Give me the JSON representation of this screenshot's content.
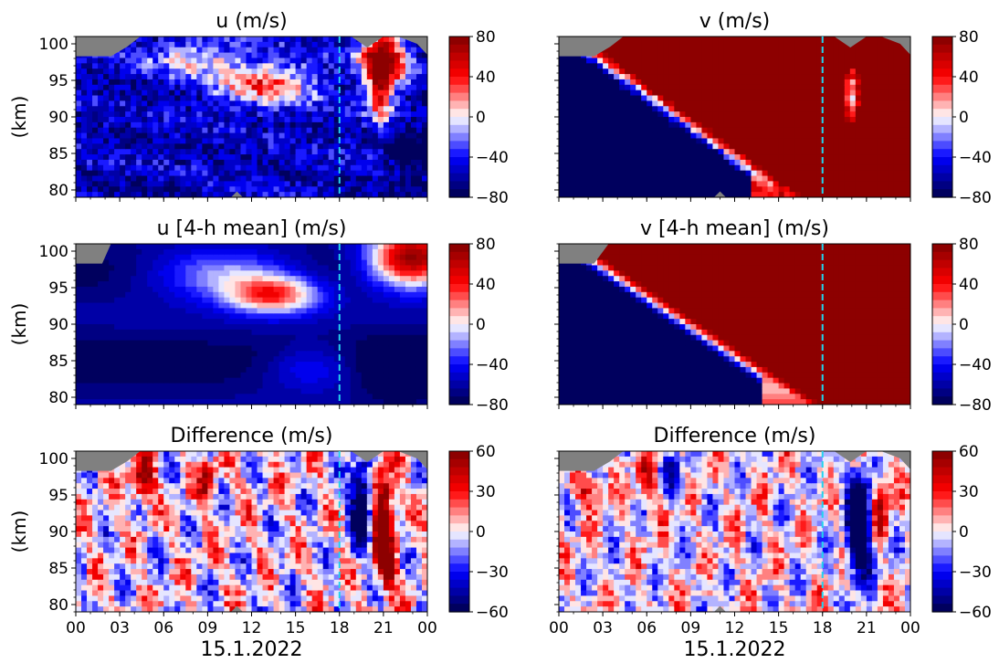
{
  "figure": {
    "xlabel": "15.1.2022",
    "ylabel": "(km)"
  },
  "colors": {
    "blue_dark": "#00004c",
    "blue": "#0000ff",
    "white": "#ffffff",
    "red": "#ff0000",
    "red_dark": "#800000",
    "no_data": "#808080",
    "marker_line": "#22d3ee"
  },
  "chart_data": [
    {
      "type": "heatmap",
      "id": "u",
      "title": "u (m/s)",
      "x_ticks": [
        "00",
        "03",
        "06",
        "09",
        "12",
        "15",
        "18",
        "21",
        "00"
      ],
      "x_hours": [
        0,
        3,
        6,
        9,
        12,
        15,
        18,
        21,
        24
      ],
      "xlim": [
        0,
        24
      ],
      "y_ticks": [
        80,
        85,
        90,
        95,
        100
      ],
      "ylim": [
        79,
        101
      ],
      "colorbar": {
        "ticks": [
          80,
          40,
          0,
          -40,
          -80
        ],
        "range": [
          -80,
          80
        ]
      },
      "marker_hour": 18,
      "pattern": "u_raw"
    },
    {
      "type": "heatmap",
      "id": "v",
      "title": "v (m/s)",
      "x_ticks": [
        "00",
        "03",
        "06",
        "09",
        "12",
        "15",
        "18",
        "21",
        "00"
      ],
      "x_hours": [
        0,
        3,
        6,
        9,
        12,
        15,
        18,
        21,
        24
      ],
      "xlim": [
        0,
        24
      ],
      "y_ticks": [
        80,
        85,
        90,
        95,
        100
      ],
      "ylim": [
        79,
        101
      ],
      "colorbar": {
        "ticks": [
          80,
          40,
          0,
          -40,
          -80
        ],
        "range": [
          -80,
          80
        ]
      },
      "marker_hour": 18,
      "pattern": "v_raw"
    },
    {
      "type": "heatmap",
      "id": "u_mean",
      "title": "u [4-h mean] (m/s)",
      "x_ticks": [
        "00",
        "03",
        "06",
        "09",
        "12",
        "15",
        "18",
        "21",
        "00"
      ],
      "x_hours": [
        0,
        3,
        6,
        9,
        12,
        15,
        18,
        21,
        24
      ],
      "xlim": [
        0,
        24
      ],
      "y_ticks": [
        80,
        85,
        90,
        95,
        100
      ],
      "ylim": [
        79,
        101
      ],
      "colorbar": {
        "ticks": [
          80,
          40,
          0,
          -40,
          -80
        ],
        "range": [
          -80,
          80
        ]
      },
      "marker_hour": 18,
      "pattern": "u_mean"
    },
    {
      "type": "heatmap",
      "id": "v_mean",
      "title": "v [4-h mean] (m/s)",
      "x_ticks": [
        "00",
        "03",
        "06",
        "09",
        "12",
        "15",
        "18",
        "21",
        "00"
      ],
      "x_hours": [
        0,
        3,
        6,
        9,
        12,
        15,
        18,
        21,
        24
      ],
      "xlim": [
        0,
        24
      ],
      "y_ticks": [
        80,
        85,
        90,
        95,
        100
      ],
      "ylim": [
        79,
        101
      ],
      "colorbar": {
        "ticks": [
          80,
          40,
          0,
          -40,
          -80
        ],
        "range": [
          -80,
          80
        ]
      },
      "marker_hour": 18,
      "pattern": "v_mean"
    },
    {
      "type": "heatmap",
      "id": "u_diff",
      "title": "Difference (m/s)",
      "x_ticks": [
        "00",
        "03",
        "06",
        "09",
        "12",
        "15",
        "18",
        "21",
        "00"
      ],
      "x_hours": [
        0,
        3,
        6,
        9,
        12,
        15,
        18,
        21,
        24
      ],
      "xlim": [
        0,
        24
      ],
      "y_ticks": [
        80,
        85,
        90,
        95,
        100
      ],
      "ylim": [
        79,
        101
      ],
      "colorbar": {
        "ticks": [
          60,
          30,
          0,
          -30,
          -60
        ],
        "range": [
          -60,
          60
        ]
      },
      "marker_hour": 18,
      "pattern": "u_diff"
    },
    {
      "type": "heatmap",
      "id": "v_diff",
      "title": "Difference (m/s)",
      "x_ticks": [
        "00",
        "03",
        "06",
        "09",
        "12",
        "15",
        "18",
        "21",
        "00"
      ],
      "x_hours": [
        0,
        3,
        6,
        9,
        12,
        15,
        18,
        21,
        24
      ],
      "xlim": [
        0,
        24
      ],
      "y_ticks": [
        80,
        85,
        90,
        95,
        100
      ],
      "ylim": [
        79,
        101
      ],
      "colorbar": {
        "ticks": [
          60,
          30,
          0,
          -30,
          -60
        ],
        "range": [
          -60,
          60
        ]
      },
      "marker_hour": 18,
      "pattern": "v_diff"
    }
  ]
}
